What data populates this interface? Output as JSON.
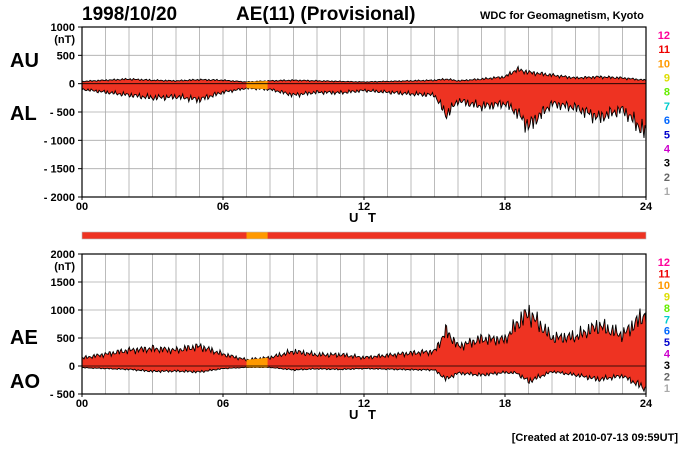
{
  "header": {
    "date": "1998/10/20",
    "title": "AE(11) (Provisional)",
    "source": "WDC for Geomagnetism, Kyoto"
  },
  "footer": {
    "created": "[Created at 2010-07-13 09:59UT]"
  },
  "fill_color": "#ee3322",
  "gap_color": "#ff9900",
  "legend": [
    {
      "label": "12",
      "color": "#ff0099"
    },
    {
      "label": "11",
      "color": "#ee0000"
    },
    {
      "label": "10",
      "color": "#ff9900"
    },
    {
      "label": "9",
      "color": "#dddd00"
    },
    {
      "label": "8",
      "color": "#66ee00"
    },
    {
      "label": "7",
      "color": "#00cccc"
    },
    {
      "label": "6",
      "color": "#0066ff"
    },
    {
      "label": "5",
      "color": "#0000cc"
    },
    {
      "label": "4",
      "color": "#cc00cc"
    },
    {
      "label": "3",
      "color": "#000000"
    },
    {
      "label": "2",
      "color": "#666666"
    },
    {
      "label": "1",
      "color": "#aaaaaa"
    }
  ],
  "chart_data": [
    {
      "type": "area",
      "panel": "AU/AL",
      "upper_label": "AU",
      "lower_label": "AL",
      "ylabel": "(nT)",
      "xlabel": "U T",
      "xlim": [
        0,
        24
      ],
      "ylim": [
        -2000,
        1000
      ],
      "xticks": [
        "00",
        "06",
        "12",
        "18",
        "24"
      ],
      "yticks": [
        "1000",
        "500",
        "0",
        "- 500",
        "- 1000",
        "- 1500",
        "- 2000"
      ],
      "grid": true,
      "series": [
        {
          "name": "AU",
          "x": [
            0,
            1,
            2,
            3,
            4,
            5,
            6,
            7,
            8,
            9,
            10,
            11,
            12,
            13,
            14,
            15,
            15.5,
            16,
            17,
            18,
            18.5,
            19,
            20,
            21,
            22,
            23,
            24
          ],
          "y": [
            40,
            60,
            80,
            60,
            50,
            70,
            60,
            30,
            50,
            60,
            50,
            40,
            30,
            40,
            50,
            60,
            80,
            50,
            80,
            120,
            250,
            200,
            150,
            100,
            120,
            100,
            60
          ]
        },
        {
          "name": "AL",
          "x": [
            0,
            1,
            2,
            3,
            4,
            5,
            6,
            7,
            8,
            9,
            10,
            11,
            12,
            13,
            14,
            15,
            15.5,
            16,
            17,
            18,
            18.5,
            19,
            20,
            21,
            22,
            23,
            24
          ],
          "y": [
            -100,
            -150,
            -200,
            -250,
            -230,
            -280,
            -150,
            -80,
            -100,
            -200,
            -150,
            -160,
            -120,
            -150,
            -180,
            -200,
            -550,
            -300,
            -400,
            -350,
            -500,
            -750,
            -350,
            -420,
            -600,
            -450,
            -880
          ]
        }
      ]
    },
    {
      "type": "area",
      "panel": "AE/AO",
      "upper_label": "AE",
      "lower_label": "AO",
      "ylabel": "(nT)",
      "xlabel": "U T",
      "xlim": [
        0,
        24
      ],
      "ylim": [
        -500,
        2000
      ],
      "xticks": [
        "00",
        "06",
        "12",
        "18",
        "24"
      ],
      "yticks": [
        "2000",
        "1500",
        "1000",
        "500",
        "0",
        "- 500"
      ],
      "grid": true,
      "series": [
        {
          "name": "AE",
          "x": [
            0,
            1,
            2,
            3,
            4,
            5,
            6,
            7,
            8,
            9,
            10,
            11,
            12,
            13,
            14,
            15,
            15.5,
            16,
            17,
            18,
            18.5,
            19,
            20,
            21,
            22,
            23,
            24
          ],
          "y": [
            140,
            210,
            280,
            310,
            280,
            350,
            210,
            110,
            150,
            260,
            200,
            200,
            150,
            190,
            230,
            260,
            630,
            350,
            480,
            470,
            750,
            950,
            500,
            520,
            720,
            550,
            940
          ]
        },
        {
          "name": "AO",
          "x": [
            0,
            1,
            2,
            3,
            4,
            5,
            6,
            7,
            8,
            9,
            10,
            11,
            12,
            13,
            14,
            15,
            15.5,
            16,
            17,
            18,
            18.5,
            19,
            20,
            21,
            22,
            23,
            24
          ],
          "y": [
            -30,
            -45,
            -60,
            -95,
            -90,
            -105,
            -45,
            -25,
            -25,
            -70,
            -50,
            -60,
            -45,
            -55,
            -65,
            -70,
            -235,
            -125,
            -160,
            -115,
            -125,
            -275,
            -100,
            -160,
            -240,
            -175,
            -410
          ]
        }
      ]
    }
  ]
}
